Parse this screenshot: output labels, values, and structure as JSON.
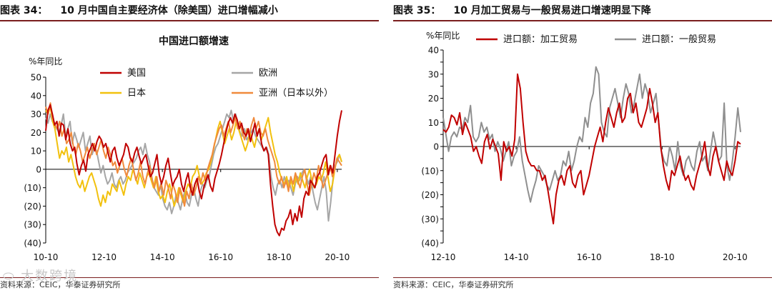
{
  "left_panel": {
    "figure_label": "图表 34：",
    "figure_title": "10 月中国自主要经济体（除美国）进口增幅减小",
    "source": "资料来源：CEIC，华泰证券研究所",
    "watermark": "大数跨境"
  },
  "right_panel": {
    "figure_label": "图表 35：",
    "figure_title": "10 月加工贸易与一般贸易进口增速明显下降",
    "source": "资料来源：CEIC，华泰证券研究所"
  },
  "chart_data": [
    {
      "type": "line",
      "title": "中国进口额增速",
      "ylabel": "%年同比",
      "xlabel": "",
      "ylim": [
        -40,
        50
      ],
      "yticks": [
        50,
        40,
        30,
        20,
        10,
        0,
        -10,
        -20,
        -30,
        -40
      ],
      "ytick_labels": [
        "50",
        "40",
        "30",
        "20",
        "10",
        "0",
        "(10)",
        "(20)",
        "(30)",
        "(40)"
      ],
      "x_start": 2010.75,
      "x_end": 2020.9,
      "xticks": [
        2010.75,
        2012.75,
        2014.75,
        2016.75,
        2018.75,
        2020.75
      ],
      "xtick_labels": [
        "10-10",
        "12-10",
        "14-10",
        "16-10",
        "18-10",
        "20-10"
      ],
      "legend": "top",
      "series": [
        {
          "name": "美国",
          "color": "#c00000",
          "values": [
            21,
            32,
            35,
            30,
            24,
            26,
            18,
            25,
            24,
            16,
            22,
            14,
            10,
            12,
            3,
            -3,
            2,
            5,
            -1,
            8,
            11,
            14,
            10,
            15,
            18,
            16,
            12,
            14,
            9,
            4,
            10,
            12,
            6,
            2,
            5,
            8,
            14,
            12,
            6,
            4,
            9,
            12,
            7,
            3,
            6,
            8,
            2,
            -4,
            -2,
            3,
            8,
            -3,
            -8,
            -4,
            2,
            6,
            -2,
            -9,
            -6,
            -4,
            0,
            -8,
            -12,
            -6,
            -2,
            -10,
            -14,
            -8,
            -5,
            -12,
            -16,
            -10,
            -6,
            -3,
            -9,
            -12,
            -5,
            -1,
            3,
            8,
            14,
            20,
            25,
            28,
            25,
            30,
            27,
            22,
            25,
            20,
            18,
            22,
            15,
            20,
            25,
            18,
            22,
            14,
            10,
            12,
            8,
            -8,
            -20,
            -30,
            -34,
            -36,
            -32,
            -33,
            -28,
            -26,
            -22,
            -30,
            -24,
            -28,
            -20,
            -26,
            -16,
            -12,
            -14,
            -6,
            -8,
            -10,
            -4,
            -2,
            2,
            6,
            8,
            -3,
            2,
            -2,
            8,
            18,
            26,
            32
          ]
        },
        {
          "name": "欧洲",
          "color": "#a6a6a6",
          "values": [
            28,
            25,
            30,
            26,
            24,
            22,
            20,
            24,
            30,
            18,
            22,
            26,
            14,
            20,
            16,
            12,
            16,
            20,
            10,
            14,
            18,
            8,
            12,
            10,
            4,
            -2,
            2,
            -4,
            -8,
            -6,
            -2,
            -8,
            -10,
            -6,
            -4,
            -8,
            -6,
            -2,
            0,
            2,
            4,
            6,
            10,
            12,
            8,
            14,
            8,
            4,
            -4,
            -10,
            -12,
            -14,
            -8,
            -16,
            -20,
            -22,
            -18,
            -24,
            -20,
            -14,
            -18,
            -22,
            -16,
            -12,
            -18,
            -20,
            -14,
            -10,
            -16,
            -20,
            -12,
            -8,
            -10,
            -6,
            -4,
            2,
            8,
            12,
            14,
            18,
            22,
            26,
            30,
            28,
            32,
            26,
            30,
            24,
            20,
            18,
            22,
            16,
            18,
            20,
            22,
            18,
            16,
            14,
            12,
            10,
            12,
            8,
            -4,
            -10,
            -14,
            -8,
            -6,
            -10,
            -4,
            -8,
            -6,
            -10,
            -14,
            -8,
            -4,
            -6,
            -2,
            0,
            -4,
            -8,
            -4,
            -12,
            -18,
            -22,
            -16,
            -10,
            -4,
            -12,
            -28,
            -18,
            -6,
            2,
            4,
            8,
            4
          ]
        },
        {
          "name": "日本",
          "color": "#f2c10e",
          "values": [
            32,
            30,
            34,
            26,
            22,
            14,
            6,
            10,
            8,
            12,
            4,
            8,
            2,
            -4,
            -8,
            -10,
            -6,
            -12,
            -8,
            -4,
            -2,
            -6,
            -10,
            -16,
            -20,
            -14,
            -18,
            -12,
            -14,
            -8,
            -10,
            -12,
            -6,
            -10,
            -14,
            -8,
            -4,
            -6,
            0,
            -4,
            -8,
            -2,
            -6,
            -10,
            -4,
            -2,
            -6,
            -10,
            -4,
            -12,
            -16,
            -14,
            -18,
            -12,
            -8,
            -14,
            -20,
            -16,
            -10,
            -14,
            -18,
            -12,
            -8,
            -10,
            -4,
            -2,
            2,
            -4,
            -8,
            -6,
            -2,
            0,
            4,
            10,
            16,
            22,
            26,
            20,
            14,
            18,
            22,
            16,
            20,
            26,
            22,
            18,
            14,
            10,
            14,
            20,
            16,
            12,
            18,
            22,
            16,
            20,
            24,
            28,
            20,
            14,
            8,
            4,
            -2,
            -6,
            -8,
            -4,
            -10,
            -6,
            -12,
            -4,
            -8,
            -2,
            -6,
            -10,
            -4,
            0,
            -6,
            -10,
            -8,
            -4,
            -6,
            -2,
            4,
            -4,
            -12,
            -8,
            0,
            6,
            8,
            4
          ]
        },
        {
          "name": "亚洲（日本以外）",
          "color": "#f08a3c",
          "values": [
            34,
            30,
            36,
            28,
            24,
            22,
            26,
            18,
            22,
            14,
            16,
            20,
            12,
            8,
            14,
            10,
            4,
            8,
            12,
            6,
            10,
            14,
            8,
            12,
            16,
            10,
            6,
            12,
            8,
            2,
            4,
            -2,
            2,
            6,
            0,
            -4,
            2,
            6,
            0,
            -6,
            -2,
            4,
            -4,
            -8,
            -2,
            2,
            -6,
            -10,
            -4,
            -12,
            -8,
            -14,
            -6,
            -10,
            -16,
            -8,
            -12,
            -18,
            -10,
            -14,
            -20,
            -12,
            -16,
            -8,
            -14,
            -10,
            -4,
            -8,
            -2,
            -6,
            0,
            4,
            8,
            14,
            18,
            22,
            24,
            18,
            22,
            26,
            20,
            24,
            28,
            22,
            26,
            20,
            16,
            22,
            18,
            24,
            28,
            22,
            26,
            20,
            18,
            22,
            16,
            12,
            8,
            4,
            -4,
            -8,
            -4,
            -10,
            -6,
            -12,
            -4,
            -8,
            -2,
            -6,
            -10,
            -4,
            0,
            -8,
            -14,
            -8,
            -2,
            -6,
            2,
            -4,
            -10,
            -6,
            -2,
            2,
            -4,
            0,
            6,
            4,
            2
          ]
        }
      ]
    },
    {
      "type": "line",
      "title": "",
      "ylabel": "%年同比",
      "xlabel": "",
      "ylim": [
        -40,
        40
      ],
      "yticks": [
        40,
        35,
        30,
        25,
        20,
        15,
        10,
        5,
        0,
        -5,
        -10,
        -15,
        -20,
        -25,
        -30,
        -35,
        -40
      ],
      "ytick_labels": [
        "40",
        "35",
        "30",
        "25",
        "20",
        "15",
        "10",
        "5",
        "0",
        "(5)",
        "(10)",
        "(15)",
        "(20)",
        "(25)",
        "(30)",
        "(35)",
        "(40)"
      ],
      "x_start": 2012.75,
      "x_end": 2020.9,
      "xticks": [
        2012.75,
        2014.75,
        2016.75,
        2018.75,
        2020.75
      ],
      "xtick_labels": [
        "12-10",
        "14-10",
        "16-10",
        "18-10",
        "20-10"
      ],
      "legend": "top",
      "series": [
        {
          "name": "进口额：加工贸易",
          "color": "#c00000",
          "values": [
            7,
            6,
            8,
            13,
            12,
            9,
            14,
            5,
            10,
            7,
            4,
            -2,
            0,
            -4,
            -7,
            2,
            5,
            -1,
            3,
            0,
            -3,
            -14,
            2,
            -2,
            0,
            -4,
            3,
            30,
            24,
            10,
            -2,
            -6,
            -8,
            -8,
            -10,
            -10,
            -14,
            -12,
            -18,
            -25,
            -32,
            -20,
            -14,
            -12,
            -16,
            -10,
            -8,
            -15,
            -17,
            -12,
            -10,
            -20,
            -16,
            -12,
            -6,
            0,
            4,
            8,
            2,
            10,
            16,
            12,
            8,
            14,
            18,
            10,
            12,
            20,
            22,
            14,
            18,
            10,
            8,
            12,
            16,
            24,
            18,
            10,
            14,
            0,
            -8,
            -14,
            -18,
            -10,
            -12,
            -8,
            -4,
            -10,
            -14,
            -12,
            -16,
            -18,
            -12,
            -8,
            -4,
            2,
            -8,
            -12,
            -4,
            0,
            -6,
            -10,
            -14,
            -6,
            -10,
            -12,
            -6,
            2,
            1
          ]
        },
        {
          "name": "进口额：一般贸易",
          "color": "#8f8f8f",
          "values": [
            12,
            5,
            -2,
            4,
            6,
            4,
            8,
            7,
            12,
            10,
            17,
            4,
            2,
            4,
            10,
            6,
            8,
            3,
            5,
            -2,
            2,
            -1,
            -6,
            -2,
            2,
            -8,
            -4,
            -2,
            4,
            -6,
            -12,
            -18,
            -23,
            -18,
            -14,
            -8,
            -10,
            -12,
            -16,
            -18,
            -14,
            -10,
            -14,
            -12,
            -6,
            -8,
            -2,
            -10,
            -6,
            0,
            4,
            2,
            12,
            8,
            18,
            22,
            33,
            30,
            10,
            6,
            4,
            16,
            20,
            24,
            18,
            12,
            20,
            26,
            22,
            14,
            18,
            24,
            30,
            20,
            26,
            22,
            14,
            18,
            22,
            10,
            -2,
            -6,
            -8,
            0,
            -4,
            -10,
            2,
            -8,
            -12,
            -6,
            -4,
            -8,
            -10,
            -2,
            2,
            -6,
            -4,
            -10,
            -2,
            6,
            0,
            -6,
            -4,
            18,
            -8,
            -14,
            -6,
            4,
            16,
            6
          ]
        }
      ]
    }
  ]
}
